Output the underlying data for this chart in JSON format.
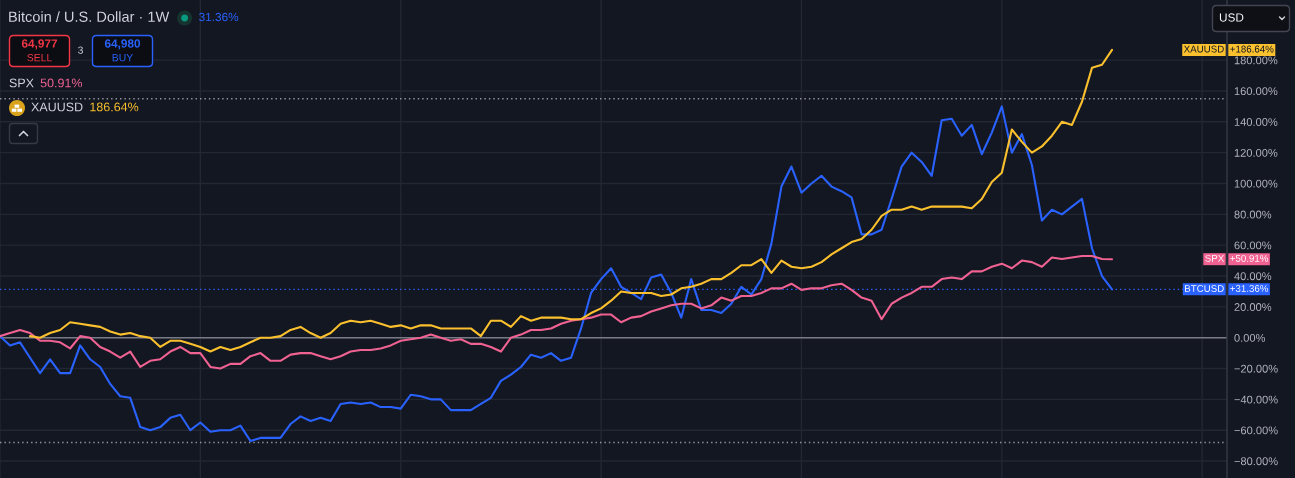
{
  "chart_data": {
    "type": "line",
    "title": "Bitcoin / U.S. Dollar · 1W",
    "annotations": [
      "31.36%",
      "64,977",
      "SELL",
      "3",
      "64,980",
      "BUY",
      "SPX",
      "50.91%",
      "XAUUSD",
      "186.64%",
      "USD",
      "+31.36%",
      "+50.91%",
      "+186.64%"
    ],
    "categories": [
      null,
      null,
      null,
      null,
      null,
      null,
      null,
      null,
      null,
      null,
      null,
      null,
      null,
      null,
      null,
      null,
      null,
      null,
      null,
      null,
      null,
      null,
      null,
      null,
      null,
      null,
      null,
      null,
      null,
      null,
      null,
      null,
      null,
      null,
      null,
      null,
      null,
      null,
      null,
      null,
      null,
      null,
      null,
      null,
      null,
      null,
      null,
      null,
      null,
      null,
      null,
      null,
      null,
      null,
      null,
      null,
      null,
      null,
      null,
      null,
      null,
      null,
      null,
      null,
      null,
      null,
      null,
      null,
      null,
      null,
      null,
      null,
      null,
      null,
      null,
      null,
      null,
      null,
      null,
      null,
      null,
      null,
      null,
      null,
      null,
      null,
      null,
      null,
      null,
      null,
      null,
      null,
      null,
      null,
      null,
      null,
      null,
      null,
      null,
      null,
      null,
      null,
      null,
      null,
      null,
      null,
      null,
      null,
      null,
      null,
      null,
      null
    ],
    "series": [
      {
        "name": "BTCUSD",
        "color": "#2962ff",
        "values": [
          1,
          -5,
          -3,
          -13,
          -23,
          -14,
          -23,
          -23,
          -5,
          -14,
          -19,
          -30,
          -38,
          -39,
          -58,
          -60,
          -58,
          -52,
          -50,
          -60,
          -55,
          -61,
          -60,
          -60,
          -57,
          -67,
          -65,
          -65,
          -65,
          -56,
          -51,
          -54,
          -52,
          -54,
          -43,
          -42,
          -43,
          -42,
          -45,
          -45,
          -46,
          -37,
          -38,
          -40,
          -40,
          -47,
          -47,
          -47,
          -43,
          -39,
          -28,
          -24,
          -19,
          -11,
          -13,
          -10,
          -15,
          -13,
          6,
          29,
          38,
          45,
          33,
          29,
          25,
          39,
          41,
          29,
          13,
          38,
          18,
          18,
          16,
          22,
          33,
          28,
          38,
          61,
          98,
          111,
          94,
          100,
          105,
          98,
          95,
          91,
          67,
          67,
          70,
          90,
          111,
          120,
          114,
          105,
          141,
          142,
          131,
          138,
          119,
          133,
          150,
          120,
          132,
          112,
          76,
          83,
          80,
          85,
          90,
          58,
          40,
          31.36
        ]
      },
      {
        "name": "SPX",
        "color": "#f06292",
        "values": [
          1,
          3,
          5,
          3,
          -2,
          -2,
          -3,
          -7,
          1,
          0,
          -6,
          -9,
          -13,
          -9,
          -19,
          -15,
          -14,
          -9,
          -6,
          -10,
          -10,
          -19,
          -20,
          -17,
          -17,
          -12,
          -10,
          -15,
          -15,
          -11,
          -10,
          -10,
          -12,
          -14,
          -12,
          -9,
          -8,
          -8,
          -7,
          -5,
          -2,
          -1,
          0,
          2,
          0,
          -2,
          -1,
          -4,
          -4,
          -6,
          -9,
          0,
          2,
          5,
          5,
          6,
          9,
          11,
          12,
          13,
          15,
          15,
          10,
          13,
          14,
          17,
          19,
          21,
          22,
          22,
          19,
          21,
          26,
          24,
          27,
          27,
          29,
          32,
          32,
          35,
          31,
          32,
          32,
          34,
          35,
          31,
          26,
          24,
          12,
          22,
          26,
          29,
          33,
          33,
          38,
          39,
          38,
          43,
          43,
          46,
          48,
          45,
          50,
          49,
          46,
          52,
          51,
          52,
          53,
          53,
          51,
          50.91
        ]
      },
      {
        "name": "XAUUSD",
        "color": "#fbc02d",
        "values": [
          null,
          null,
          null,
          1,
          0,
          3,
          5,
          10,
          9,
          8,
          7,
          4,
          2,
          3,
          1,
          0,
          -6,
          -2,
          -2,
          -4,
          -6,
          -9,
          -6,
          -8,
          -6,
          -3,
          0,
          0,
          1,
          5,
          7,
          3,
          0,
          3,
          9,
          11,
          10,
          11,
          9,
          7,
          8,
          6,
          8,
          8,
          6,
          6,
          6,
          6,
          1,
          11,
          11,
          7,
          14,
          11,
          13,
          13,
          13,
          12,
          12,
          16,
          19,
          24,
          30,
          29,
          29,
          29,
          27,
          28,
          32,
          33,
          35,
          38,
          38,
          42,
          47,
          47,
          51,
          42,
          50,
          46,
          45,
          46,
          49,
          54,
          58,
          62,
          64,
          70,
          79,
          83,
          83,
          85,
          83,
          85,
          85,
          85,
          85,
          84,
          90,
          101,
          107,
          135,
          127,
          120,
          124,
          131,
          140,
          138,
          153,
          175,
          177,
          186.64
        ]
      }
    ],
    "ylim": [
      -91,
      219
    ],
    "yticks": [
      {
        "value": -80,
        "label": "−80.00%"
      },
      {
        "value": -60,
        "label": "−60.00%"
      },
      {
        "value": -40,
        "label": "−40.00%"
      },
      {
        "value": -20,
        "label": "−20.00%"
      },
      {
        "value": 0,
        "label": "0.00%"
      },
      {
        "value": 20,
        "label": "20.00%"
      },
      {
        "value": 40,
        "label": "40.00%"
      },
      {
        "value": 60,
        "label": "60.00%"
      },
      {
        "value": 80,
        "label": "80.00%"
      },
      {
        "value": 100,
        "label": "100.00%"
      },
      {
        "value": 120,
        "label": "120.00%"
      },
      {
        "value": 140,
        "label": "140.00%"
      },
      {
        "value": 160,
        "label": "160.00%"
      },
      {
        "value": 180,
        "label": "180.00%"
      }
    ],
    "ref_lines": [
      {
        "axis": "y",
        "value": 0,
        "color": "#787b86",
        "line_style": "solid"
      },
      {
        "axis": "y",
        "value": 31.36,
        "color": "#2962ff",
        "line_style": "dotted"
      },
      {
        "axis": "y",
        "value": 155,
        "color": "#9598a1",
        "line_style": "dotted"
      },
      {
        "axis": "y",
        "value": -68,
        "color": "#9598a1",
        "line_style": "dotted"
      }
    ],
    "grid": true,
    "legend": "right",
    "tick_labels": "y"
  }
}
